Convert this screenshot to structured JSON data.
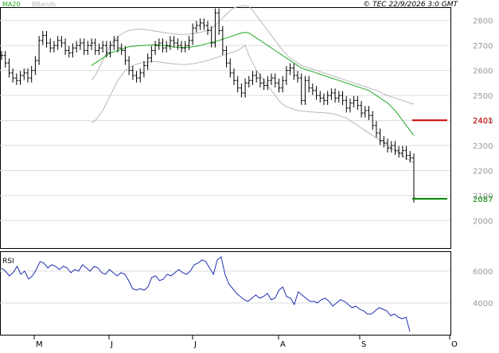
{
  "header": {
    "legend": [
      {
        "name": "MA20",
        "color": "#22aa22"
      },
      {
        "name": "BBands",
        "color": "#b8b8b8"
      }
    ],
    "copyright": "© TEC 22/9/2026 3:0 GMT"
  },
  "chart_data": [
    {
      "type": "line",
      "panel": "price",
      "yticks": [
        2000,
        2100,
        2200,
        2300,
        2400,
        2500,
        2600,
        2700,
        2800
      ],
      "ylim": [
        1890,
        2850
      ],
      "xlabels": [
        "M",
        "J",
        "J",
        "A",
        "S",
        "O"
      ],
      "xlabel_positions": [
        8,
        33,
        58,
        83,
        108,
        133
      ],
      "grid": true,
      "close": [
        2660,
        2630,
        2590,
        2570,
        2560,
        2580,
        2590,
        2570,
        2600,
        2640,
        2720,
        2740,
        2710,
        2690,
        2700,
        2720,
        2710,
        2680,
        2670,
        2690,
        2700,
        2710,
        2680,
        2700,
        2710,
        2680,
        2690,
        2700,
        2670,
        2700,
        2720,
        2690,
        2680,
        2640,
        2600,
        2580,
        2570,
        2590,
        2620,
        2650,
        2680,
        2700,
        2710,
        2690,
        2700,
        2720,
        2710,
        2700,
        2690,
        2700,
        2720,
        2770,
        2780,
        2790,
        2780,
        2760,
        2710,
        2830,
        2760,
        2680,
        2630,
        2590,
        2560,
        2530,
        2510,
        2550,
        2560,
        2580,
        2570,
        2550,
        2540,
        2560,
        2570,
        2550,
        2530,
        2560,
        2600,
        2610,
        2580,
        2570,
        2480,
        2560,
        2530,
        2520,
        2500,
        2490,
        2480,
        2500,
        2510,
        2490,
        2500,
        2480,
        2450,
        2470,
        2480,
        2460,
        2430,
        2440,
        2420,
        2380,
        2350,
        2320,
        2310,
        2290,
        2300,
        2280,
        2270,
        2280,
        2260,
        2250,
        2090
      ],
      "lowmark": [
        null,
        null,
        null,
        null,
        null,
        null,
        null,
        null,
        null,
        null,
        null,
        null,
        null,
        null,
        null,
        null,
        null,
        null,
        null,
        null,
        null,
        null,
        null,
        null,
        null,
        null,
        null,
        null,
        null,
        null,
        null,
        null,
        null,
        null,
        null,
        null,
        null,
        null,
        null,
        null,
        null,
        null,
        null,
        null,
        null,
        null,
        null,
        null,
        null,
        null,
        null,
        null,
        null,
        null,
        null,
        null,
        null,
        null,
        null,
        null,
        null,
        null,
        null,
        null,
        null,
        null,
        null,
        null,
        null,
        null,
        null,
        null,
        null,
        null,
        null,
        null,
        null,
        null,
        null,
        null,
        null,
        null,
        null,
        null,
        null,
        null,
        null,
        null,
        null,
        null,
        null,
        null,
        null,
        null,
        null,
        null,
        null,
        null,
        null,
        null,
        null,
        null,
        null,
        null,
        null,
        null,
        null,
        null,
        null,
        null,
        null
      ],
      "ma20": [
        2620,
        2630,
        2640,
        2650,
        2660,
        2670,
        2675,
        2680,
        2685,
        2690,
        2695,
        2697,
        2698,
        2699,
        2700,
        2701,
        2702,
        2703,
        2702,
        2700,
        2698,
        2696,
        2694,
        2693,
        2692,
        2692,
        2693,
        2695,
        2697,
        2700,
        2704,
        2708,
        2712,
        2716,
        2720,
        2725,
        2730,
        2735,
        2740,
        2745,
        2750,
        2752,
        2750,
        2740,
        2730,
        2720,
        2710,
        2700,
        2690,
        2680,
        2670,
        2660,
        2650,
        2640,
        2630,
        2620,
        2610,
        2605,
        2600,
        2595,
        2590,
        2585,
        2580,
        2575,
        2570,
        2565,
        2560,
        2555,
        2550,
        2545,
        2540,
        2535,
        2530,
        2525,
        2520,
        2510,
        2500,
        2490,
        2480,
        2470,
        2455,
        2440,
        2420,
        2400,
        2380,
        2360,
        2340
      ],
      "bb_upper": [
        2560,
        2580,
        2610,
        2640,
        2670,
        2700,
        2720,
        2735,
        2745,
        2755,
        2760,
        2763,
        2765,
        2765,
        2764,
        2762,
        2760,
        2757,
        2755,
        2752,
        2750,
        2748,
        2746,
        2745,
        2744,
        2744,
        2745,
        2747,
        2749,
        2752,
        2756,
        2762,
        2770,
        2780,
        2795,
        2810,
        2825,
        2840,
        2850,
        2855,
        2858,
        2860,
        2855,
        2840,
        2820,
        2800,
        2780,
        2760,
        2740,
        2720,
        2700,
        2680,
        2665,
        2650,
        2640,
        2630,
        2620,
        2615,
        2610,
        2605,
        2600,
        2595,
        2590,
        2585,
        2580,
        2575,
        2570,
        2565,
        2560,
        2555,
        2550,
        2545,
        2540,
        2535,
        2530,
        2525,
        2520,
        2515,
        2505,
        2500,
        2495,
        2490,
        2485,
        2480,
        2475,
        2470,
        2465
      ],
      "bb_lower": [
        2390,
        2400,
        2420,
        2440,
        2470,
        2500,
        2530,
        2560,
        2580,
        2600,
        2610,
        2620,
        2625,
        2630,
        2632,
        2634,
        2636,
        2635,
        2634,
        2632,
        2630,
        2628,
        2626,
        2625,
        2624,
        2624,
        2625,
        2627,
        2630,
        2633,
        2636,
        2640,
        2645,
        2650,
        2655,
        2660,
        2665,
        2670,
        2675,
        2680,
        2690,
        2700,
        2660,
        2630,
        2600,
        2580,
        2560,
        2540,
        2520,
        2500,
        2480,
        2465,
        2455,
        2450,
        2445,
        2440,
        2438,
        2436,
        2435,
        2434,
        2433,
        2432,
        2431,
        2430,
        2428,
        2425,
        2420,
        2415,
        2410,
        2400,
        2390,
        2380,
        2370,
        2360,
        2350,
        2340,
        2330,
        2320,
        2310,
        2300,
        2290,
        2280,
        2270,
        2260,
        2250,
        2240,
        2230
      ],
      "series": [
        {
          "name": "MA20",
          "color": "#22aa22"
        },
        {
          "name": "BBands",
          "color": "#b8b8b8"
        }
      ],
      "resistance": {
        "value": 2401,
        "label": "2401",
        "color": "#cc0000"
      },
      "support": {
        "value": 2087,
        "label": "2087",
        "color": "#008800"
      }
    },
    {
      "type": "line",
      "panel": "rsi",
      "title": "RSI",
      "yticks": [
        4000,
        6000
      ],
      "ylim": [
        2000,
        7200
      ],
      "grid": true,
      "series": [
        {
          "name": "RSI",
          "color": "#1f2fb0",
          "values": [
            6200,
            6000,
            5700,
            5900,
            6300,
            5800,
            6000,
            5500,
            5700,
            6100,
            6600,
            6500,
            6200,
            6400,
            6300,
            6100,
            6300,
            6200,
            5900,
            6100,
            6000,
            6400,
            6200,
            6000,
            6300,
            6200,
            5900,
            5800,
            6100,
            5900,
            5700,
            5900,
            5800,
            5400,
            4900,
            4800,
            4900,
            4800,
            5000,
            5600,
            5700,
            5400,
            5500,
            5800,
            5700,
            5900,
            6100,
            5900,
            5800,
            6000,
            6400,
            6500,
            6700,
            6600,
            6200,
            5800,
            6700,
            6900,
            5800,
            5200,
            4900,
            4600,
            4400,
            4200,
            4100,
            4300,
            4500,
            4300,
            4400,
            4600,
            4200,
            4300,
            4800,
            5000,
            4400,
            4300,
            3900,
            4700,
            4500,
            4300,
            4100,
            4100,
            4000,
            4200,
            4300,
            4100,
            3800,
            4000,
            4200,
            4100,
            3900,
            3700,
            3800,
            3600,
            3500,
            3300,
            3300,
            3500,
            3700,
            3600,
            3500,
            3200,
            3300,
            3100,
            3000,
            3100,
            2200
          ]
        }
      ]
    }
  ]
}
